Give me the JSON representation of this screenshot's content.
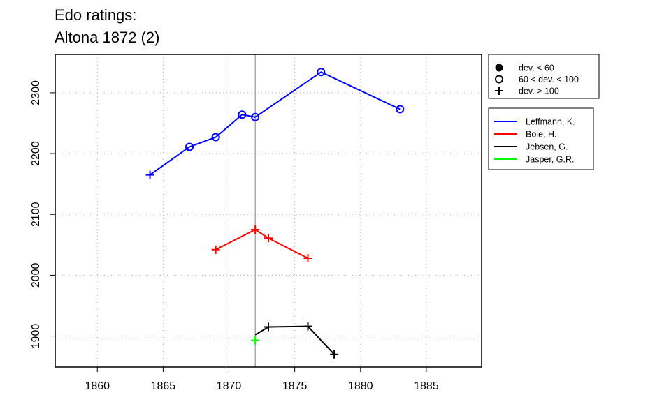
{
  "chart_data": {
    "type": "line",
    "title_line1": "Edo ratings:",
    "title_line2": "Altona 1872 (2)",
    "xlabel": "",
    "ylabel": "",
    "xlim": [
      1856.8,
      1889.2
    ],
    "ylim": [
      1849,
      2363
    ],
    "x_ticks": [
      1860,
      1865,
      1870,
      1875,
      1880,
      1885
    ],
    "y_ticks": [
      1900,
      2000,
      2100,
      2200,
      2300
    ],
    "grid": true,
    "reference_line_x": 1872,
    "legend_deviation": {
      "placement": "top-right",
      "items": [
        {
          "marker": "dot",
          "label": "dev. < 60"
        },
        {
          "marker": "circle",
          "label": "60 < dev. < 100"
        },
        {
          "marker": "plus",
          "label": "dev. > 100"
        }
      ]
    },
    "series": [
      {
        "name": "Leffmann, K.",
        "color": "#0000ff",
        "points": [
          {
            "x": 1864,
            "y": 2165,
            "marker": "plus"
          },
          {
            "x": 1867,
            "y": 2211,
            "marker": "circle"
          },
          {
            "x": 1869,
            "y": 2227,
            "marker": "circle"
          },
          {
            "x": 1871,
            "y": 2264,
            "marker": "circle"
          },
          {
            "x": 1872,
            "y": 2260,
            "marker": "circle"
          },
          {
            "x": 1877,
            "y": 2334,
            "marker": "circle"
          },
          {
            "x": 1883,
            "y": 2273,
            "marker": "circle"
          }
        ]
      },
      {
        "name": "Boie, H.",
        "color": "#ff0000",
        "points": [
          {
            "x": 1869,
            "y": 2042,
            "marker": "plus"
          },
          {
            "x": 1872,
            "y": 2075,
            "marker": "plus"
          },
          {
            "x": 1873,
            "y": 2061,
            "marker": "plus"
          },
          {
            "x": 1876,
            "y": 2028,
            "marker": "plus"
          }
        ]
      },
      {
        "name": "Jebsen, G.",
        "color": "#000000",
        "points": [
          {
            "x": 1872,
            "y": 1902,
            "marker": "none"
          },
          {
            "x": 1873,
            "y": 1915,
            "marker": "plus"
          },
          {
            "x": 1876,
            "y": 1916,
            "marker": "plus"
          },
          {
            "x": 1878,
            "y": 1870,
            "marker": "plus"
          }
        ]
      },
      {
        "name": "Jasper, G.R.",
        "color": "#00ff00",
        "points": [
          {
            "x": 1872,
            "y": 1893,
            "marker": "plus"
          }
        ]
      }
    ]
  }
}
